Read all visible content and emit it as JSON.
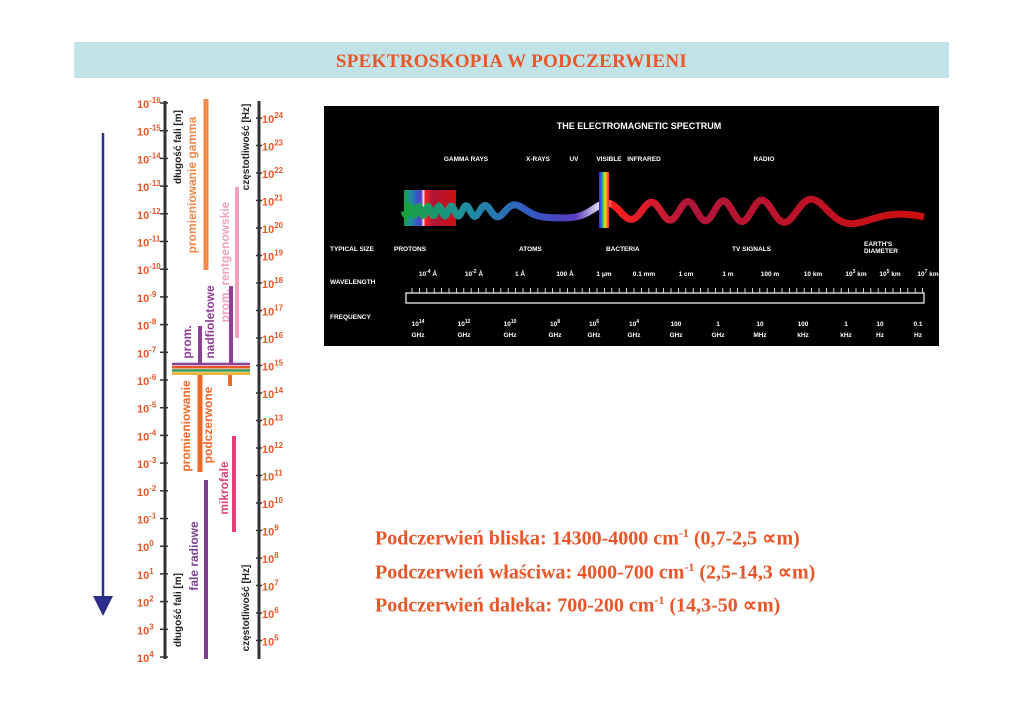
{
  "title": "SPEKTROSKOPIA W PODCZERWIENI",
  "scale": {
    "wavelength_label": "długość fali [m]",
    "frequency_label": "częstotliwość [Hz]",
    "wavelength_exponents": [
      "-16",
      "-15",
      "-14",
      "-13",
      "-12",
      "-11",
      "-10",
      "-9",
      "-8",
      "-7",
      "-6",
      "-5",
      "-4",
      "-3",
      "-2",
      "-1",
      "0",
      "1",
      "2",
      "3",
      "4"
    ],
    "frequency_exponents": [
      "24",
      "23",
      "22",
      "21",
      "20",
      "19",
      "18",
      "17",
      "16",
      "15",
      "14",
      "13",
      "12",
      "11",
      "10",
      "9",
      "8",
      "7",
      "6",
      "5"
    ],
    "bands": [
      {
        "label": "promieniowanie gamma",
        "color": "#f0884a"
      },
      {
        "label": "prom. rentgenowskie",
        "color": "#f2a0bc"
      },
      {
        "label": "nadfioletowe",
        "color": "#8e3f96"
      },
      {
        "label": "prom.",
        "color": "#8e3f96"
      },
      {
        "label": "promieniowanie",
        "color": "#ee6a2a"
      },
      {
        "label": "podczerwone",
        "color": "#ee6a2a"
      },
      {
        "label": "mikrofale",
        "color": "#e2407a"
      },
      {
        "label": "fale radiowe",
        "color": "#7a3f8e"
      }
    ]
  },
  "em_spectrum": {
    "title": "THE ELECTROMAGNETIC SPECTRUM",
    "regions": [
      "GAMMA RAYS",
      "X-RAYS",
      "UV",
      "VISIBLE",
      "INFRARED",
      "RADIO"
    ],
    "typical_size_label": "TYPICAL SIZE",
    "sizes": [
      "PROTONS",
      "ATOMS",
      "BACTERIA",
      "TV SIGNALS",
      "EARTH'S",
      "DIAMETER"
    ],
    "wavelength_label": "WAVELENGTH",
    "wavelengths": [
      {
        "b": "10",
        "e": "-4",
        "u": " Å"
      },
      {
        "b": "10",
        "e": "-2",
        "u": " Å"
      },
      {
        "b": "1 Å",
        "e": "",
        "u": ""
      },
      {
        "b": "100 Å",
        "e": "",
        "u": ""
      },
      {
        "b": "1 μm",
        "e": "",
        "u": ""
      },
      {
        "b": "0.1 mm",
        "e": "",
        "u": ""
      },
      {
        "b": "1 cm",
        "e": "",
        "u": ""
      },
      {
        "b": "1 m",
        "e": "",
        "u": ""
      },
      {
        "b": "100 m",
        "e": "",
        "u": ""
      },
      {
        "b": "10 km",
        "e": "",
        "u": ""
      },
      {
        "b": "10",
        "e": "3",
        "u": " km"
      },
      {
        "b": "10",
        "e": "5",
        "u": " km"
      },
      {
        "b": "10",
        "e": "7",
        "u": " km"
      }
    ],
    "frequency_label": "FREQUENCY",
    "frequencies": [
      {
        "v": "10",
        "e": "14",
        "u": "GHz"
      },
      {
        "v": "10",
        "e": "12",
        "u": "GHz"
      },
      {
        "v": "10",
        "e": "10",
        "u": "GHz"
      },
      {
        "v": "10",
        "e": "8",
        "u": "GHz"
      },
      {
        "v": "10",
        "e": "6",
        "u": "GHz"
      },
      {
        "v": "10",
        "e": "4",
        "u": "GHz"
      },
      {
        "v": "100",
        "e": "",
        "u": "GHz"
      },
      {
        "v": "1",
        "e": "",
        "u": "GHz"
      },
      {
        "v": "10",
        "e": "",
        "u": "MHz"
      },
      {
        "v": "100",
        "e": "",
        "u": "kHz"
      },
      {
        "v": "1",
        "e": "",
        "u": "kHz"
      },
      {
        "v": "10",
        "e": "",
        "u": "Hz"
      },
      {
        "v": "0.1",
        "e": "",
        "u": "Hz"
      }
    ]
  },
  "ir_ranges": [
    {
      "pre": "Podczerwień bliska: 14300-4000 cm",
      "exp": "-1",
      "post": " (0,7-2,5 ∝m)"
    },
    {
      "pre": "Podczerwień właściwa: 4000-700 cm",
      "exp": "-1",
      "post": " (2,5-14,3 ∝m)"
    },
    {
      "pre": "Podczerwień daleka: 700-200 cm",
      "exp": "-1",
      "post": " (14,3-50 ∝m)"
    }
  ],
  "colors": {
    "accent": "#e8562a",
    "title_bg": "#bfe3e6",
    "arrow": "#2a2f8a"
  }
}
